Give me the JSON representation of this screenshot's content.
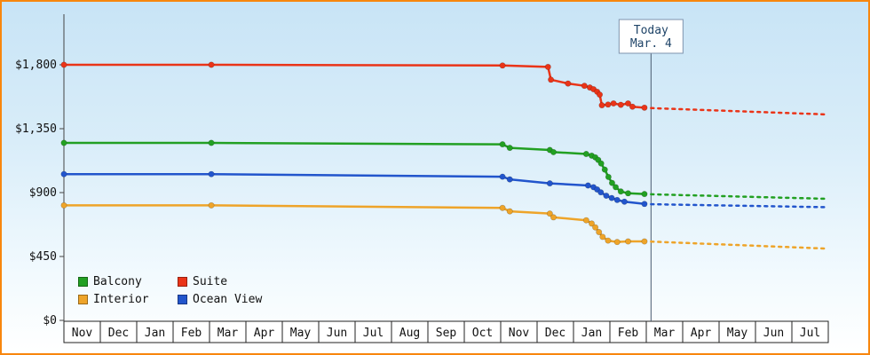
{
  "chart_data": {
    "type": "line",
    "ylim": [
      0,
      1800
    ],
    "grid": false,
    "legend_position": "bottom-left",
    "y_ticks": [
      {
        "label": "$1,800",
        "value": 1800
      },
      {
        "label": "$1,350",
        "value": 1350
      },
      {
        "label": "$900",
        "value": 900
      },
      {
        "label": "$450",
        "value": 450
      },
      {
        "label": "$0",
        "value": 0
      }
    ],
    "x_labels": [
      "Nov",
      "Dec",
      "Jan",
      "Feb",
      "Mar",
      "Apr",
      "May",
      "Jun",
      "Jul",
      "Aug",
      "Sep",
      "Oct",
      "Nov",
      "Dec",
      "Jan",
      "Feb",
      "Mar",
      "Apr",
      "May",
      "Jun",
      "Jul"
    ],
    "today": {
      "line1": "Today",
      "line2": "Mar. 4",
      "x": 16.13
    },
    "legend": [
      "Balcony",
      "Suite",
      "Interior",
      "Ocean View"
    ],
    "series": [
      {
        "name": "Suite",
        "color": "#ea3418",
        "points": [
          [
            0,
            1800
          ],
          [
            4.05,
            1800
          ],
          [
            12.05,
            1795
          ],
          [
            13.3,
            1785
          ],
          [
            13.38,
            1695
          ],
          [
            13.85,
            1668
          ],
          [
            14.3,
            1652
          ],
          [
            14.45,
            1640
          ],
          [
            14.55,
            1628
          ],
          [
            14.65,
            1610
          ],
          [
            14.72,
            1590
          ],
          [
            14.78,
            1515
          ],
          [
            14.95,
            1520
          ],
          [
            15.1,
            1528
          ],
          [
            15.3,
            1518
          ],
          [
            15.5,
            1528
          ],
          [
            15.62,
            1505
          ],
          [
            15.95,
            1498
          ]
        ],
        "forecast": [
          [
            16.13,
            1495
          ],
          [
            21,
            1450
          ]
        ]
      },
      {
        "name": "Balcony",
        "color": "#22a022",
        "points": [
          [
            0,
            1250
          ],
          [
            4.05,
            1250
          ],
          [
            12.05,
            1240
          ],
          [
            12.25,
            1215
          ],
          [
            13.35,
            1200
          ],
          [
            13.45,
            1185
          ],
          [
            14.35,
            1172
          ],
          [
            14.5,
            1160
          ],
          [
            14.6,
            1148
          ],
          [
            14.68,
            1130
          ],
          [
            14.76,
            1105
          ],
          [
            14.86,
            1062
          ],
          [
            14.96,
            1010
          ],
          [
            15.06,
            968
          ],
          [
            15.16,
            938
          ],
          [
            15.3,
            908
          ],
          [
            15.5,
            895
          ],
          [
            15.95,
            890
          ]
        ],
        "forecast": [
          [
            16.13,
            888
          ],
          [
            21,
            856
          ]
        ]
      },
      {
        "name": "Ocean View",
        "color": "#2255cc",
        "points": [
          [
            0,
            1030
          ],
          [
            4.05,
            1030
          ],
          [
            12.05,
            1012
          ],
          [
            12.25,
            993
          ],
          [
            13.35,
            965
          ],
          [
            14.4,
            950
          ],
          [
            14.55,
            938
          ],
          [
            14.65,
            922
          ],
          [
            14.75,
            902
          ],
          [
            14.9,
            878
          ],
          [
            15.05,
            862
          ],
          [
            15.2,
            848
          ],
          [
            15.4,
            836
          ],
          [
            15.95,
            820
          ]
        ],
        "forecast": [
          [
            16.13,
            818
          ],
          [
            21,
            797
          ]
        ]
      },
      {
        "name": "Interior",
        "color": "#eea429",
        "points": [
          [
            0,
            810
          ],
          [
            4.05,
            810
          ],
          [
            12.05,
            792
          ],
          [
            12.25,
            768
          ],
          [
            13.35,
            752
          ],
          [
            13.45,
            726
          ],
          [
            14.35,
            705
          ],
          [
            14.5,
            682
          ],
          [
            14.6,
            655
          ],
          [
            14.7,
            622
          ],
          [
            14.8,
            588
          ],
          [
            14.95,
            562
          ],
          [
            15.2,
            552
          ],
          [
            15.5,
            556
          ],
          [
            15.95,
            556
          ]
        ],
        "forecast": [
          [
            16.13,
            555
          ],
          [
            21,
            505
          ]
        ]
      }
    ]
  }
}
